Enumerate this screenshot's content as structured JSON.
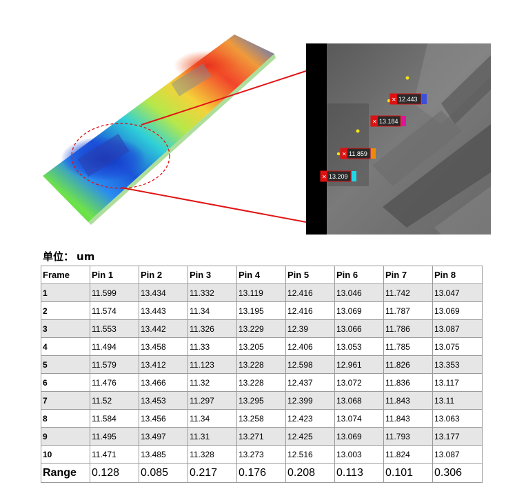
{
  "unit": {
    "label": "单位：",
    "value": "um"
  },
  "markers": [
    {
      "value": "12.443",
      "color": "#3f4fd6"
    },
    {
      "value": "13.184",
      "color": "#e0149c"
    },
    {
      "value": "11.859",
      "color": "#f08a00"
    },
    {
      "value": "13.209",
      "color": "#20d6e8"
    }
  ],
  "table": {
    "headers": [
      "Frame",
      "Pin 1",
      "Pin 2",
      "Pin 3",
      "Pin 4",
      "Pin 5",
      "Pin 6",
      "Pin 7",
      "Pin 8"
    ],
    "rows": [
      [
        "1",
        "11.599",
        "13.434",
        "11.332",
        "13.119",
        "12.416",
        "13.046",
        "11.742",
        "13.047"
      ],
      [
        "2",
        "11.574",
        "13.443",
        "11.34",
        "13.195",
        "12.416",
        "13.069",
        "11.787",
        "13.069"
      ],
      [
        "3",
        "11.553",
        "13.442",
        "11.326",
        "13.229",
        "12.39",
        "13.066",
        "11.786",
        "13.087"
      ],
      [
        "4",
        "11.494",
        "13.458",
        "11.33",
        "13.205",
        "12.406",
        "13.053",
        "11.785",
        "13.075"
      ],
      [
        "5",
        "11.579",
        "13.412",
        "11.123",
        "13.228",
        "12.598",
        "12.961",
        "11.826",
        "13.353"
      ],
      [
        "6",
        "11.476",
        "13.466",
        "11.32",
        "13.228",
        "12.437",
        "13.072",
        "11.836",
        "13.117"
      ],
      [
        "7",
        "11.52",
        "13.453",
        "11.297",
        "13.295",
        "12.399",
        "13.068",
        "11.843",
        "13.11"
      ],
      [
        "8",
        "11.584",
        "13.456",
        "11.34",
        "13.258",
        "12.423",
        "13.074",
        "11.843",
        "13.063"
      ],
      [
        "9",
        "11.495",
        "13.497",
        "11.31",
        "13.271",
        "12.425",
        "13.069",
        "11.793",
        "13.177"
      ],
      [
        "10",
        "11.471",
        "13.485",
        "11.328",
        "13.273",
        "12.516",
        "13.003",
        "11.824",
        "13.087"
      ]
    ],
    "range": [
      "Range",
      "0.128",
      "0.085",
      "0.217",
      "0.176",
      "0.208",
      "0.113",
      "0.101",
      "0.306"
    ]
  }
}
